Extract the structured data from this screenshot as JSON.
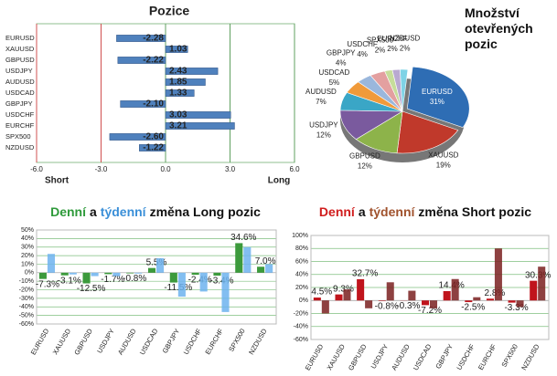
{
  "chart_data": [
    {
      "type": "hbar",
      "title": "Pozice",
      "categories": [
        "EURUSD",
        "XAUUSD",
        "GBPUSD",
        "USDJPY",
        "AUDUSD",
        "USDCAD",
        "GBPJPY",
        "USDCHF",
        "EURCHF",
        "SPX500",
        "NZDUSD"
      ],
      "values": [
        -2.28,
        1.03,
        -2.22,
        2.43,
        1.85,
        1.33,
        -2.1,
        3.03,
        3.21,
        -2.6,
        -1.22
      ],
      "value_labels": [
        "-2.28",
        "1.03",
        "-2.22",
        "2.43",
        "1.85",
        "1.33",
        "-2.10",
        "3.03",
        "3.21",
        "-2.60",
        "-1.22"
      ],
      "color": "#4f81bd",
      "xlim": [
        -6,
        6
      ],
      "xticks": [
        {
          "value": -6,
          "label": "-6.0"
        },
        {
          "value": -3,
          "label": "-3.0"
        },
        {
          "value": 0,
          "label": "0.0"
        },
        {
          "value": 3,
          "label": "3.0"
        },
        {
          "value": 6,
          "label": "6.0"
        }
      ],
      "axis_labels": [
        "Short",
        "Long"
      ]
    },
    {
      "type": "pie",
      "title": "Množství otevřených pozic",
      "categories": [
        "EURUSD",
        "XAUUSD",
        "GBPUSD",
        "USDJPY",
        "AUDUSD",
        "USDCAD",
        "GBPJPY",
        "USDCHF",
        "SPX500",
        "EURCHF",
        "NZDUSD"
      ],
      "values": [
        31,
        19,
        12,
        12,
        7,
        5,
        4,
        4,
        2,
        2,
        2
      ],
      "value_labels": [
        "31%",
        "19%",
        "12%",
        "12%",
        "7%",
        "5%",
        "4%",
        "4%",
        "2%",
        "2%",
        "2%"
      ],
      "colors": [
        "#2e6db4",
        "#c0392b",
        "#8db34a",
        "#7a5a9e",
        "#3aa6c6",
        "#f09a3a",
        "#9ab7dc",
        "#e3a0a0",
        "#c6dd9a",
        "#b9a9d1",
        "#7fd3e6"
      ]
    },
    {
      "type": "bar",
      "title_parts": [
        {
          "text": "Denní",
          "color": "#2e9a3a"
        },
        {
          "text": "a",
          "color": "#111"
        },
        {
          "text": "týdenní",
          "color": "#3a8fd8"
        },
        {
          "text": "změna Long pozic",
          "color": "#111"
        }
      ],
      "categories": [
        "EURUSD",
        "XAUUSD",
        "GBPUSD",
        "USDJPY",
        "AUDUSD",
        "USDCAD",
        "GBPJPY",
        "USDCHF",
        "EURCHF",
        "SPX500",
        "NZDUSD"
      ],
      "series": [
        {
          "color": "#3c9a3c",
          "values": [
            -7.3,
            -3.1,
            -12.5,
            -1.7,
            -0.8,
            5.5,
            -11.5,
            -2.4,
            -3.4,
            34.6,
            7.0
          ],
          "value_labels": [
            "-7.3%",
            "-3.1%",
            "-12.5%",
            "-1.7%",
            "-0.8%",
            "5.5%",
            "-11.5%",
            "-2.4%",
            "-3.4%",
            "34.6%",
            "7.0%"
          ]
        },
        {
          "color": "#6db3ee",
          "values": [
            22,
            -2,
            -4,
            -4,
            -1,
            17,
            -28,
            -22,
            -46,
            30,
            10
          ]
        }
      ],
      "ylim": [
        -60,
        50
      ],
      "yticks": [
        {
          "value": -60,
          "label": "-60%"
        },
        {
          "value": -50,
          "label": "-50%"
        },
        {
          "value": -40,
          "label": "-40%"
        },
        {
          "value": -30,
          "label": "-30%"
        },
        {
          "value": -20,
          "label": "-20%"
        },
        {
          "value": -10,
          "label": "-10%"
        },
        {
          "value": 0,
          "label": "0%"
        },
        {
          "value": 10,
          "label": "10%"
        },
        {
          "value": 20,
          "label": "20%"
        },
        {
          "value": 30,
          "label": "30%"
        },
        {
          "value": 40,
          "label": "40%"
        },
        {
          "value": 50,
          "label": "50%"
        }
      ],
      "grid": true
    },
    {
      "type": "bar",
      "title_parts": [
        {
          "text": "Denní",
          "color": "#d01c1c"
        },
        {
          "text": "a",
          "color": "#111"
        },
        {
          "text": "týdenní",
          "color": "#a0522d"
        },
        {
          "text": "změna Short pozic",
          "color": "#111"
        }
      ],
      "categories": [
        "EURUSD",
        "XAUUSD",
        "GBPUSD",
        "USDJPY",
        "AUDUSD",
        "USDCAD",
        "GBPJPY",
        "USDCHF",
        "EURCHF",
        "SPX500",
        "NZDUSD"
      ],
      "series": [
        {
          "color": "#c0141c",
          "values": [
            4.5,
            9.3,
            32.7,
            -0.8,
            -0.3,
            -7.2,
            14.4,
            -2.5,
            2.8,
            -3.3,
            30.3
          ],
          "value_labels": [
            "4.5%",
            "9.3%",
            "32.7%",
            "-0.8%",
            "-0.3%",
            "-7.2%",
            "14.4%",
            "-2.5%",
            "2.8%",
            "-3.3%",
            "30.3%"
          ]
        },
        {
          "color": "#7a2020",
          "values": [
            -20,
            17,
            -12,
            28,
            15,
            -12,
            33,
            5,
            80,
            -10,
            52
          ]
        }
      ],
      "ylim": [
        -60,
        100
      ],
      "yticks": [
        {
          "value": -60,
          "label": "-60%"
        },
        {
          "value": -40,
          "label": "-40%"
        },
        {
          "value": -20,
          "label": "-20%"
        },
        {
          "value": 0,
          "label": "0%"
        },
        {
          "value": 20,
          "label": "20%"
        },
        {
          "value": 40,
          "label": "40%"
        },
        {
          "value": 60,
          "label": "60%"
        },
        {
          "value": 80,
          "label": "80%"
        },
        {
          "value": 100,
          "label": "100%"
        }
      ],
      "grid": true
    }
  ]
}
